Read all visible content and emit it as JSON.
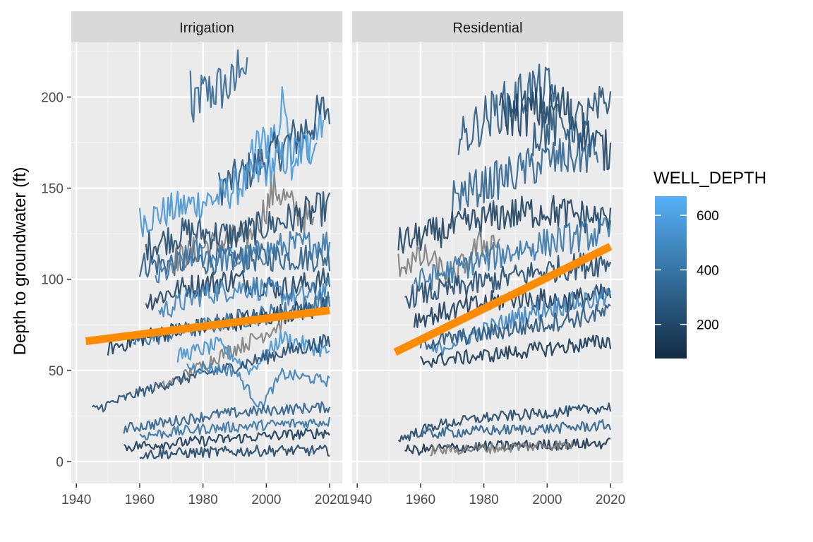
{
  "chart_data": {
    "type": "line",
    "facet_variable": "Irrigation / Residential",
    "ylabel": "Depth to groundwater (ft)",
    "xlabel": "",
    "xlim": [
      1940,
      2020
    ],
    "ylim": [
      -12,
      230
    ],
    "x_ticks": [
      1940,
      1960,
      1980,
      2000,
      2020
    ],
    "y_ticks": [
      0,
      50,
      100,
      150,
      200
    ],
    "grid": true,
    "legend": {
      "title": "WELL_DEPTH",
      "placement": "right",
      "type": "colorbar",
      "ticks": [
        200,
        400,
        600
      ],
      "range": [
        75,
        670
      ],
      "low_color": "#132B43",
      "high_color": "#56B1F7",
      "na_color": "#7F7F7F"
    },
    "colors": {
      "trend": "#FF8C00",
      "panel_bg": "#EBEBEB",
      "strip_bg": "#D9D9D9",
      "grid_major": "#FFFFFF"
    },
    "facets": [
      {
        "label": "Irrigation",
        "trend": {
          "x": [
            1943,
            2020
          ],
          "y": [
            66,
            83
          ]
        },
        "series": [
          {
            "well_depth": 350,
            "start": 1976,
            "end": 1994,
            "pts": [
              [
                1976,
                210
              ],
              [
                1977,
                183
              ],
              [
                1978,
                200
              ],
              [
                1985,
                205
              ],
              [
                1990,
                206
              ],
              [
                1992,
                226
              ],
              [
                1994,
                208
              ]
            ]
          },
          {
            "well_depth": 580,
            "start": 1995,
            "end": 2018,
            "pts": [
              [
                1995,
                170
              ],
              [
                2000,
                176
              ],
              [
                2004,
                182
              ],
              [
                2006,
                205
              ],
              [
                2008,
                166
              ],
              [
                2012,
                172
              ],
              [
                2018,
                187
              ]
            ]
          },
          {
            "well_depth": 260,
            "start": 1985,
            "end": 2020,
            "pts": [
              [
                1985,
                150
              ],
              [
                1995,
                160
              ],
              [
                2005,
                172
              ],
              [
                2012,
                182
              ],
              [
                2020,
                195
              ]
            ]
          },
          {
            "well_depth": 560,
            "start": 1960,
            "end": 2016,
            "pts": [
              [
                1960,
                132
              ],
              [
                1970,
                138
              ],
              [
                1985,
                145
              ],
              [
                1995,
                155
              ],
              [
                2005,
                166
              ],
              [
                2016,
                175
              ]
            ]
          },
          {
            "well_depth": 300,
            "start": 1960,
            "end": 2020,
            "pts": [
              [
                1960,
                108
              ],
              [
                1980,
                110
              ],
              [
                2000,
                112
              ],
              [
                2020,
                112
              ]
            ]
          },
          {
            "well_depth": null,
            "start": 1968,
            "end": 2015,
            "pts": [
              [
                1968,
                108
              ],
              [
                1980,
                118
              ],
              [
                1995,
                124
              ],
              [
                2003,
                150
              ],
              [
                2008,
                140
              ],
              [
                2015,
                130
              ]
            ]
          },
          {
            "well_depth": 220,
            "start": 1962,
            "end": 2020,
            "pts": [
              [
                1962,
                118
              ],
              [
                1975,
                126
              ],
              [
                1990,
                124
              ],
              [
                2005,
                132
              ],
              [
                2020,
                140
              ]
            ]
          },
          {
            "well_depth": 420,
            "start": 1965,
            "end": 2020,
            "pts": [
              [
                1965,
                100
              ],
              [
                1978,
                115
              ],
              [
                1990,
                110
              ],
              [
                2005,
                118
              ],
              [
                2020,
                120
              ]
            ]
          },
          {
            "well_depth": 180,
            "start": 1962,
            "end": 2020,
            "pts": [
              [
                1962,
                88
              ],
              [
                1975,
                96
              ],
              [
                1990,
                100
              ],
              [
                2005,
                95
              ],
              [
                2020,
                100
              ]
            ]
          },
          {
            "well_depth": 480,
            "start": 1966,
            "end": 2020,
            "pts": [
              [
                1966,
                82
              ],
              [
                1980,
                92
              ],
              [
                1995,
                96
              ],
              [
                2010,
                90
              ],
              [
                2020,
                95
              ]
            ]
          },
          {
            "well_depth": 150,
            "start": 1950,
            "end": 2020,
            "pts": [
              [
                1950,
                62
              ],
              [
                1965,
                70
              ],
              [
                1980,
                74
              ],
              [
                2000,
                80
              ],
              [
                2020,
                85
              ]
            ]
          },
          {
            "well_depth": 380,
            "start": 1958,
            "end": 2020,
            "pts": [
              [
                1958,
                66
              ],
              [
                1975,
                72
              ],
              [
                1990,
                78
              ],
              [
                2005,
                82
              ],
              [
                2020,
                88
              ]
            ]
          },
          {
            "well_depth": null,
            "start": 1966,
            "end": 2005,
            "pts": [
              [
                1966,
                40
              ],
              [
                1975,
                48
              ],
              [
                1985,
                58
              ],
              [
                1995,
                66
              ],
              [
                2005,
                76
              ]
            ]
          },
          {
            "well_depth": 540,
            "start": 1972,
            "end": 2020,
            "pts": [
              [
                1972,
                58
              ],
              [
                1985,
                64
              ],
              [
                1995,
                50
              ],
              [
                2005,
                68
              ],
              [
                2020,
                60
              ]
            ]
          },
          {
            "well_depth": 240,
            "start": 1945,
            "end": 2020,
            "pts": [
              [
                1945,
                28
              ],
              [
                1960,
                38
              ],
              [
                1975,
                46
              ],
              [
                1990,
                52
              ],
              [
                2005,
                60
              ],
              [
                2020,
                66
              ]
            ]
          },
          {
            "well_depth": 460,
            "start": 1975,
            "end": 2020,
            "pts": [
              [
                1975,
                52
              ],
              [
                1990,
                50
              ],
              [
                1998,
                30
              ],
              [
                2005,
                48
              ],
              [
                2020,
                44
              ]
            ]
          },
          {
            "well_depth": 320,
            "start": 1955,
            "end": 2020,
            "pts": [
              [
                1955,
                18
              ],
              [
                1970,
                22
              ],
              [
                1985,
                26
              ],
              [
                2000,
                28
              ],
              [
                2020,
                30
              ]
            ]
          },
          {
            "well_depth": 140,
            "start": 1955,
            "end": 2020,
            "pts": [
              [
                1955,
                8
              ],
              [
                1970,
                10
              ],
              [
                1985,
                12
              ],
              [
                2000,
                14
              ],
              [
                2020,
                16
              ]
            ]
          },
          {
            "well_depth": 400,
            "start": 1960,
            "end": 2020,
            "pts": [
              [
                1960,
                14
              ],
              [
                1980,
                18
              ],
              [
                2000,
                20
              ],
              [
                2020,
                22
              ]
            ]
          },
          {
            "well_depth": 200,
            "start": 1960,
            "end": 2020,
            "pts": [
              [
                1960,
                4
              ],
              [
                1980,
                5
              ],
              [
                2000,
                6
              ],
              [
                2020,
                6
              ]
            ]
          }
        ]
      },
      {
        "label": "Residential",
        "trend": {
          "x": [
            1952,
            2020
          ],
          "y": [
            60,
            118
          ]
        },
        "series": [
          {
            "well_depth": 300,
            "start": 1972,
            "end": 2003,
            "pts": [
              [
                1972,
                175
              ],
              [
                1980,
                188
              ],
              [
                1990,
                199
              ],
              [
                1994,
                204
              ],
              [
                2003,
                203
              ]
            ]
          },
          {
            "well_depth": 200,
            "start": 1985,
            "end": 2020,
            "pts": [
              [
                1985,
                190
              ],
              [
                1995,
                192
              ],
              [
                2005,
                195
              ],
              [
                2012,
                180
              ],
              [
                2020,
                168
              ]
            ]
          },
          {
            "well_depth": 260,
            "start": 1995,
            "end": 2020,
            "pts": [
              [
                1995,
                180
              ],
              [
                2005,
                185
              ],
              [
                2015,
                190
              ],
              [
                2020,
                200
              ]
            ]
          },
          {
            "well_depth": 340,
            "start": 1970,
            "end": 2016,
            "pts": [
              [
                1970,
                145
              ],
              [
                1985,
                155
              ],
              [
                2000,
                165
              ],
              [
                2016,
                170
              ]
            ]
          },
          {
            "well_depth": 180,
            "start": 1953,
            "end": 2020,
            "pts": [
              [
                1953,
                120
              ],
              [
                1970,
                128
              ],
              [
                1985,
                135
              ],
              [
                2000,
                138
              ],
              [
                2020,
                132
              ]
            ]
          },
          {
            "well_depth": null,
            "start": 1953,
            "end": 1985,
            "pts": [
              [
                1953,
                108
              ],
              [
                1962,
                112
              ],
              [
                1970,
                100
              ],
              [
                1978,
                118
              ],
              [
                1985,
                122
              ]
            ]
          },
          {
            "well_depth": 420,
            "start": 1958,
            "end": 2020,
            "pts": [
              [
                1958,
                98
              ],
              [
                1975,
                108
              ],
              [
                1990,
                116
              ],
              [
                2005,
                122
              ],
              [
                2020,
                126
              ]
            ]
          },
          {
            "well_depth": 220,
            "start": 1955,
            "end": 2020,
            "pts": [
              [
                1955,
                90
              ],
              [
                1970,
                95
              ],
              [
                1985,
                100
              ],
              [
                2000,
                105
              ],
              [
                2020,
                110
              ]
            ]
          },
          {
            "well_depth": 160,
            "start": 1958,
            "end": 2020,
            "pts": [
              [
                1958,
                78
              ],
              [
                1975,
                85
              ],
              [
                1990,
                90
              ],
              [
                2005,
                88
              ],
              [
                2020,
                92
              ]
            ]
          },
          {
            "well_depth": 480,
            "start": 1963,
            "end": 2020,
            "pts": [
              [
                1963,
                60
              ],
              [
                1980,
                72
              ],
              [
                1995,
                82
              ],
              [
                2010,
                88
              ],
              [
                2020,
                90
              ]
            ]
          },
          {
            "well_depth": 280,
            "start": 1960,
            "end": 2020,
            "pts": [
              [
                1960,
                65
              ],
              [
                1980,
                70
              ],
              [
                2000,
                76
              ],
              [
                2020,
                82
              ]
            ]
          },
          {
            "well_depth": 140,
            "start": 1960,
            "end": 2020,
            "pts": [
              [
                1960,
                55
              ],
              [
                1980,
                58
              ],
              [
                2000,
                62
              ],
              [
                2020,
                66
              ]
            ]
          },
          {
            "well_depth": 200,
            "start": 1953,
            "end": 2020,
            "pts": [
              [
                1953,
                12
              ],
              [
                1965,
                20
              ],
              [
                1980,
                24
              ],
              [
                1995,
                26
              ],
              [
                2010,
                28
              ],
              [
                2020,
                30
              ]
            ]
          },
          {
            "well_depth": 320,
            "start": 1960,
            "end": 2020,
            "pts": [
              [
                1960,
                15
              ],
              [
                1980,
                17
              ],
              [
                2000,
                18
              ],
              [
                2020,
                20
              ]
            ]
          },
          {
            "well_depth": 120,
            "start": 1955,
            "end": 2020,
            "pts": [
              [
                1955,
                6
              ],
              [
                1975,
                8
              ],
              [
                1995,
                9
              ],
              [
                2020,
                10
              ]
            ]
          },
          {
            "well_depth": null,
            "start": 1963,
            "end": 2008,
            "pts": [
              [
                1963,
                6
              ],
              [
                1975,
                7
              ],
              [
                1990,
                8
              ],
              [
                2000,
                9
              ],
              [
                2008,
                9
              ]
            ]
          }
        ]
      }
    ]
  }
}
